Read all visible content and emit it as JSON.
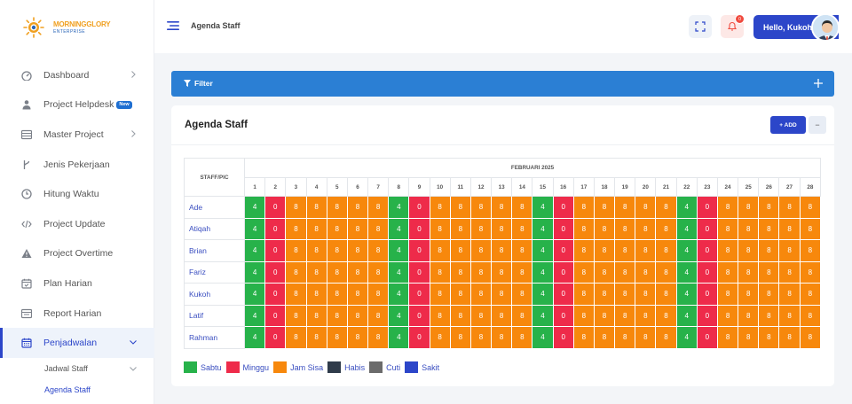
{
  "brand": {
    "line1": "MORNINGGLORY",
    "line2": "ENTERPRISE"
  },
  "colors": {
    "accent": "#2c46c9",
    "filter": "#2b7fd4",
    "sabtu": "#27b24a",
    "minggu": "#ee2b4a",
    "jam_sisa": "#f7880c",
    "habis": "#2f3b4a",
    "cuti": "#6b6b6b",
    "sakit": "#2c46c9"
  },
  "sidebar": {
    "items": [
      {
        "label": "Dashboard",
        "icon": "dashboard-icon",
        "chevron": true
      },
      {
        "label": "Project Helpdesk",
        "icon": "helpdesk-icon",
        "badge": "New"
      },
      {
        "label": "Master Project",
        "icon": "master-project-icon",
        "chevron": true
      },
      {
        "label": "Jenis Pekerjaan",
        "icon": "branch-icon"
      },
      {
        "label": "Hitung Waktu",
        "icon": "clock-icon"
      },
      {
        "label": "Project Update",
        "icon": "code-icon"
      },
      {
        "label": "Project Overtime",
        "icon": "warning-icon"
      },
      {
        "label": "Plan Harian",
        "icon": "calendar-check-icon"
      },
      {
        "label": "Report Harian",
        "icon": "report-icon"
      },
      {
        "label": "Penjadwalan",
        "icon": "calendar-icon",
        "chevron": true,
        "active": true
      }
    ],
    "sub_items": [
      {
        "label": "Jadwal Staff",
        "chevron": true
      },
      {
        "label": "Agenda Staff",
        "current": true
      }
    ]
  },
  "header": {
    "title": "Agenda Staff",
    "notif_count": "0",
    "greeting": "Hello, Kukoh"
  },
  "filter": {
    "label": "Filter"
  },
  "card": {
    "title": "Agenda Staff",
    "add_label": "+ ADD",
    "collapse_label": "−"
  },
  "table": {
    "staff_header": "STAFF/PIC",
    "month": "FEBRUARI 2025",
    "days": [
      "1",
      "2",
      "3",
      "4",
      "5",
      "6",
      "7",
      "8",
      "9",
      "10",
      "11",
      "12",
      "13",
      "14",
      "15",
      "16",
      "17",
      "18",
      "19",
      "20",
      "21",
      "22",
      "23",
      "24",
      "25",
      "26",
      "27",
      "28"
    ],
    "staff": [
      "Ade",
      "Atiqah",
      "Brian",
      "Fariz",
      "Kukoh",
      "Latif",
      "Rahman"
    ],
    "day_types": [
      "sabtu",
      "minggu",
      "sisa",
      "sisa",
      "sisa",
      "sisa",
      "sisa",
      "sabtu",
      "minggu",
      "sisa",
      "sisa",
      "sisa",
      "sisa",
      "sisa",
      "sabtu",
      "minggu",
      "sisa",
      "sisa",
      "sisa",
      "sisa",
      "sisa",
      "sabtu",
      "minggu",
      "sisa",
      "sisa",
      "sisa",
      "sisa",
      "sisa"
    ],
    "hours": [
      "4",
      "0",
      "8",
      "8",
      "8",
      "8",
      "8",
      "4",
      "0",
      "8",
      "8",
      "8",
      "8",
      "8",
      "4",
      "0",
      "8",
      "8",
      "8",
      "8",
      "8",
      "4",
      "0",
      "8",
      "8",
      "8",
      "8",
      "8"
    ]
  },
  "legend": [
    {
      "label": "Sabtu",
      "color": "#27b24a"
    },
    {
      "label": "Minggu",
      "color": "#ee2b4a"
    },
    {
      "label": "Jam Sisa",
      "color": "#f7880c"
    },
    {
      "label": "Habis",
      "color": "#2f3b4a"
    },
    {
      "label": "Cuti",
      "color": "#6b6b6b"
    },
    {
      "label": "Sakit",
      "color": "#2c46c9"
    }
  ]
}
